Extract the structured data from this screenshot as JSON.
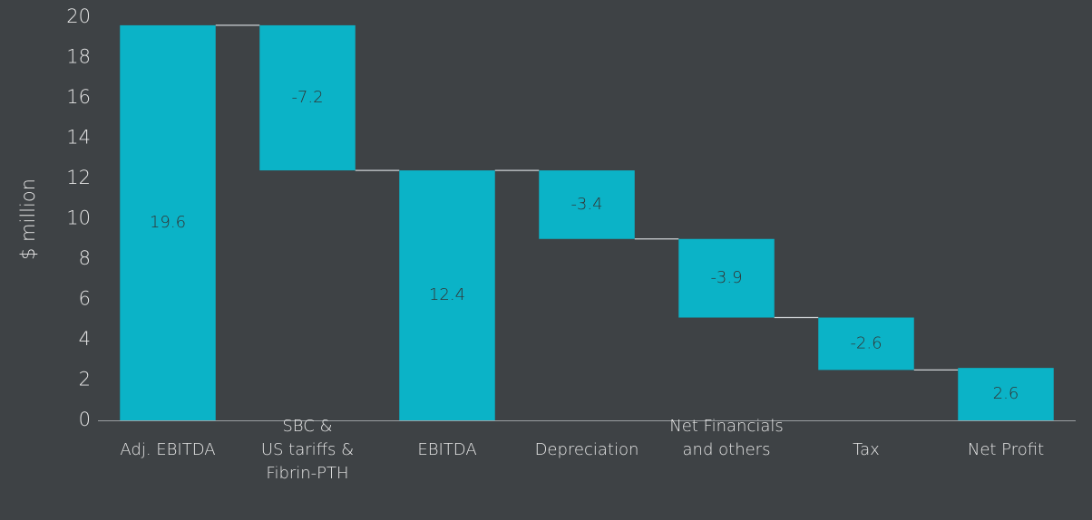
{
  "chart_data": {
    "type": "waterfall",
    "y_label": "$ million",
    "categories": [
      "Adj. EBITDA",
      "SBC &\nUS tariffs &\nFibrin-PTH",
      "EBITDA",
      "Depreciation",
      "Net Financials\nand others",
      "Tax",
      "Net Profit"
    ],
    "values": [
      19.6,
      -7.2,
      12.4,
      -3.4,
      -3.9,
      -2.6,
      2.6
    ],
    "color": "#0bb3c7",
    "ylim": [
      0,
      20
    ],
    "yticks": [
      0,
      2,
      4,
      6,
      8,
      10,
      12,
      14,
      16,
      18,
      20
    ],
    "grid": false
  }
}
